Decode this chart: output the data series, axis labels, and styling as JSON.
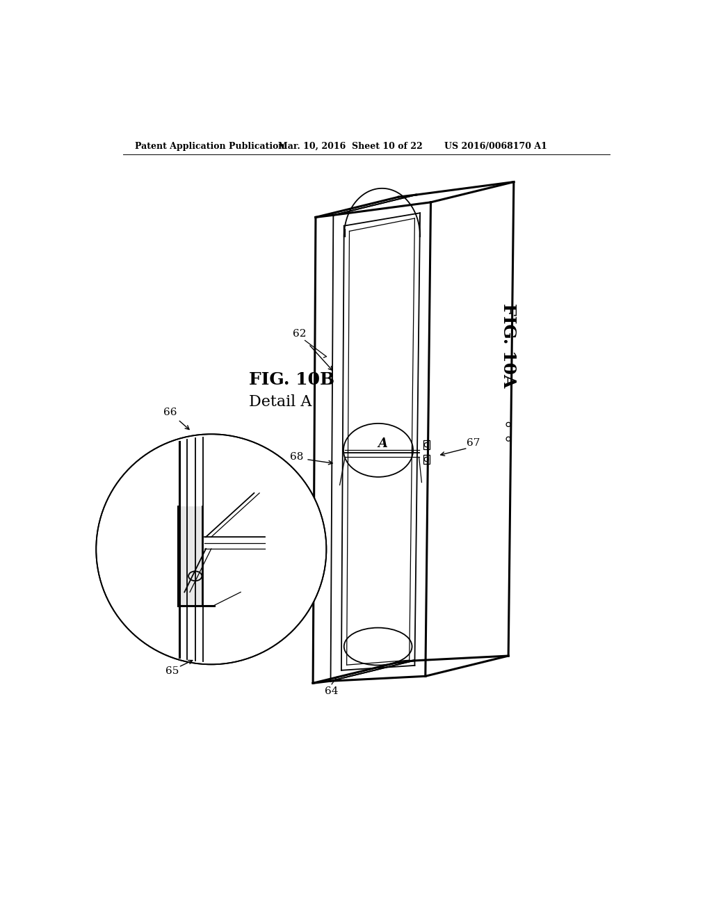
{
  "bg_color": "#ffffff",
  "header_left": "Patent Application Publication",
  "header_mid": "Mar. 10, 2016  Sheet 10 of 22",
  "header_right": "US 2016/0068170 A1",
  "fig_label_main": "FIG. 10A",
  "fig_label_detail": "FIG. 10B",
  "fig_detail_sub": "Detail A",
  "detail_circle_label": "A",
  "ref_62": "62",
  "ref_64": "64",
  "ref_65": "65",
  "ref_66": "66",
  "ref_67": "67",
  "ref_68": "68"
}
